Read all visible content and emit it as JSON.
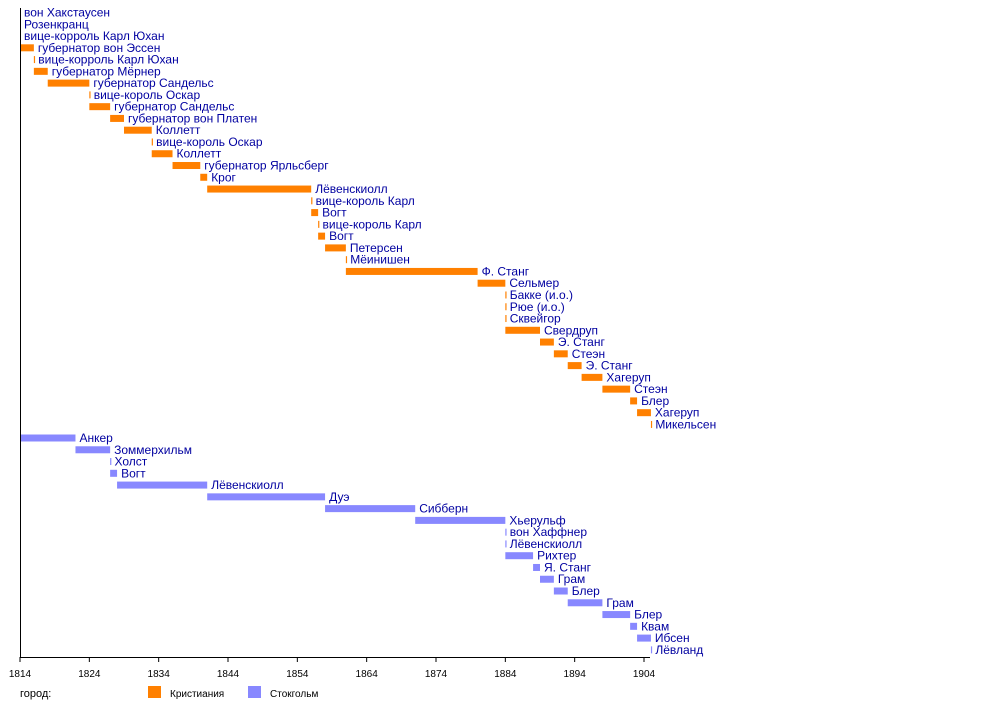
{
  "chart_data": {
    "type": "timeline",
    "title": "",
    "xlabel": "",
    "x_range": [
      1814,
      1905
    ],
    "x_ticks": [
      1814,
      1824,
      1834,
      1844,
      1854,
      1864,
      1874,
      1884,
      1894,
      1904
    ],
    "legend": {
      "title": "город:",
      "placement": "bottom-left",
      "entries": [
        {
          "name": "Кристиания",
          "color": "#ff8000"
        },
        {
          "name": "Стокгольм",
          "color": "#8888ff"
        }
      ]
    },
    "label_color": "#0000a0",
    "series": [
      {
        "name": "Кристиания",
        "color": "#ff8000",
        "items": [
          {
            "label": "вон Хакстаусен",
            "start": 1814,
            "end": 1814
          },
          {
            "label": "Розенкранц",
            "start": 1814,
            "end": 1814
          },
          {
            "label": "вице-корроль Карл Юхан",
            "start": 1814,
            "end": 1814
          },
          {
            "label": "губернатор вон Эссен",
            "start": 1814,
            "end": 1816
          },
          {
            "label": "вице-корроль Карл Юхан",
            "start": 1816,
            "end": 1816.2
          },
          {
            "label": "губернатор Мёрнер",
            "start": 1816,
            "end": 1818
          },
          {
            "label": "губернатор Сандельс",
            "start": 1818,
            "end": 1824
          },
          {
            "label": "вице-король Оскар",
            "start": 1824,
            "end": 1824.2
          },
          {
            "label": "губернатор Сандельс",
            "start": 1824,
            "end": 1827
          },
          {
            "label": "губернатор вон Платен",
            "start": 1827,
            "end": 1829
          },
          {
            "label": "Коллетт",
            "start": 1829,
            "end": 1833
          },
          {
            "label": "вице-король Оскар",
            "start": 1833,
            "end": 1833.2
          },
          {
            "label": "Коллетт",
            "start": 1833,
            "end": 1836
          },
          {
            "label": "губернатор Ярльсберг",
            "start": 1836,
            "end": 1840
          },
          {
            "label": "Крог",
            "start": 1840,
            "end": 1841
          },
          {
            "label": "Лёвенскиолл",
            "start": 1841,
            "end": 1856
          },
          {
            "label": "вице-король Карл",
            "start": 1856,
            "end": 1856.2
          },
          {
            "label": "Вогт",
            "start": 1856,
            "end": 1857
          },
          {
            "label": "вице-король Карл",
            "start": 1857,
            "end": 1857.2
          },
          {
            "label": "Вогт",
            "start": 1857,
            "end": 1858
          },
          {
            "label": "Петерсен",
            "start": 1858,
            "end": 1861
          },
          {
            "label": "Мёинишен",
            "start": 1861,
            "end": 1861.2
          },
          {
            "label": "Ф. Станг",
            "start": 1861,
            "end": 1880
          },
          {
            "label": "Сельмер",
            "start": 1880,
            "end": 1884
          },
          {
            "label": "Бакке (и.о.)",
            "start": 1884,
            "end": 1884.2
          },
          {
            "label": "Рюе (и.о.)",
            "start": 1884,
            "end": 1884.2
          },
          {
            "label": "Сквейгор",
            "start": 1884,
            "end": 1884.2
          },
          {
            "label": "Свердруп",
            "start": 1884,
            "end": 1889
          },
          {
            "label": "Э. Станг",
            "start": 1889,
            "end": 1891
          },
          {
            "label": "Стеэн",
            "start": 1891,
            "end": 1893
          },
          {
            "label": "Э. Станг",
            "start": 1893,
            "end": 1895
          },
          {
            "label": "Хагеруп",
            "start": 1895,
            "end": 1898
          },
          {
            "label": "Стеэн",
            "start": 1898,
            "end": 1902
          },
          {
            "label": "Блер",
            "start": 1902,
            "end": 1903
          },
          {
            "label": "Хагеруп",
            "start": 1903,
            "end": 1905
          },
          {
            "label": "Микельсен",
            "start": 1905,
            "end": 1905.2
          }
        ]
      },
      {
        "name": "Стокгольм",
        "color": "#8888ff",
        "items": [
          {
            "label": "Анкер",
            "start": 1814,
            "end": 1822
          },
          {
            "label": "Зоммерхильм",
            "start": 1822,
            "end": 1827
          },
          {
            "label": "Холст",
            "start": 1827,
            "end": 1827.2
          },
          {
            "label": "Вогт",
            "start": 1827,
            "end": 1828
          },
          {
            "label": "Лёвенскиолл",
            "start": 1828,
            "end": 1841
          },
          {
            "label": "Дуэ",
            "start": 1841,
            "end": 1858
          },
          {
            "label": "Сибберн",
            "start": 1858,
            "end": 1871
          },
          {
            "label": "Хьерульф",
            "start": 1871,
            "end": 1884
          },
          {
            "label": "вон Хаффнер",
            "start": 1884,
            "end": 1884.2
          },
          {
            "label": "Лёвенскиолл",
            "start": 1884,
            "end": 1884.2
          },
          {
            "label": "Рихтер",
            "start": 1884,
            "end": 1888
          },
          {
            "label": "Я. Станг",
            "start": 1888,
            "end": 1889
          },
          {
            "label": "Грам",
            "start": 1889,
            "end": 1891
          },
          {
            "label": "Блер",
            "start": 1891,
            "end": 1893
          },
          {
            "label": "Грам",
            "start": 1893,
            "end": 1898
          },
          {
            "label": "Блер",
            "start": 1898,
            "end": 1902
          },
          {
            "label": "Квам",
            "start": 1902,
            "end": 1903
          },
          {
            "label": "Ибсен",
            "start": 1903,
            "end": 1905
          },
          {
            "label": "Лёвланд",
            "start": 1905,
            "end": 1905.2
          }
        ]
      }
    ]
  }
}
